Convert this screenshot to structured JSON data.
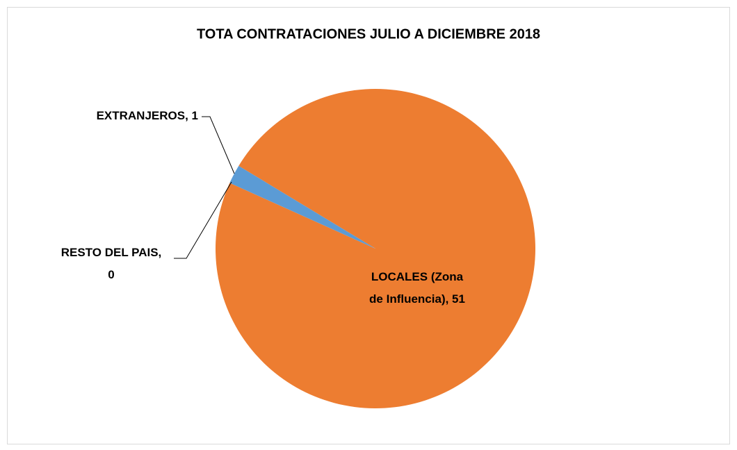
{
  "chart_data": {
    "type": "pie",
    "title": "TOTA CONTRATACIONES JULIO A DICIEMBRE 2018",
    "values": [
      51,
      0,
      1
    ],
    "value_labels": [
      "LOCALES (Zona\nde Influencia), 51",
      "RESTO DEL PAIS,\n0",
      "EXTRANJEROS, 1"
    ],
    "colors": [
      "#ed7d31",
      "#a5a5a5",
      "#5b9bd5"
    ]
  }
}
